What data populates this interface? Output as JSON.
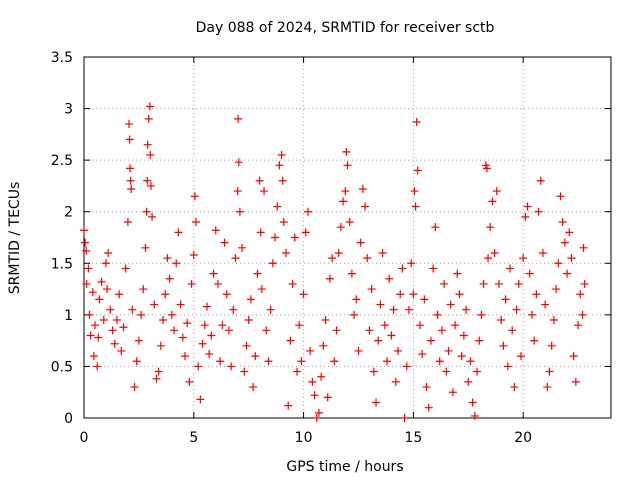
{
  "chart_data": {
    "type": "scatter",
    "title": "Day 088 of 2024, SRMTID for receiver sctb",
    "xlabel": "GPS time / hours",
    "ylabel": "SRMTID / TECUs",
    "xlim": [
      0,
      24
    ],
    "ylim": [
      0,
      3.5
    ],
    "x_ticks": [
      0,
      5,
      10,
      15,
      20
    ],
    "x_tick_labels": [
      "0",
      "5",
      "10",
      "15",
      "20"
    ],
    "y_ticks": [
      0,
      0.5,
      1,
      1.5,
      2,
      2.5,
      3,
      3.5
    ],
    "y_tick_labels": [
      "0",
      "0.5",
      "1",
      "1.5",
      "2",
      "2.5",
      "3",
      "3.5"
    ],
    "grid": true,
    "marker": "+",
    "series": [
      {
        "name": "SRMTID",
        "color": "#ff0000",
        "points": [
          [
            0.0,
            1.82
          ],
          [
            0.05,
            1.7
          ],
          [
            0.1,
            1.62
          ],
          [
            0.12,
            1.3
          ],
          [
            0.2,
            1.45
          ],
          [
            0.25,
            1.0
          ],
          [
            0.3,
            0.8
          ],
          [
            0.4,
            1.22
          ],
          [
            0.45,
            0.6
          ],
          [
            0.5,
            0.9
          ],
          [
            0.6,
            0.5
          ],
          [
            0.65,
            0.78
          ],
          [
            0.7,
            1.15
          ],
          [
            0.8,
            1.32
          ],
          [
            0.9,
            0.95
          ],
          [
            1.0,
            1.5
          ],
          [
            1.05,
            1.25
          ],
          [
            1.1,
            1.6
          ],
          [
            1.2,
            1.05
          ],
          [
            1.3,
            0.85
          ],
          [
            1.4,
            0.72
          ],
          [
            1.5,
            0.95
          ],
          [
            1.6,
            1.2
          ],
          [
            1.7,
            0.65
          ],
          [
            1.8,
            0.88
          ],
          [
            1.9,
            1.45
          ],
          [
            2.0,
            1.9
          ],
          [
            2.05,
            2.85
          ],
          [
            2.08,
            2.7
          ],
          [
            2.1,
            2.42
          ],
          [
            2.12,
            2.3
          ],
          [
            2.15,
            2.22
          ],
          [
            2.2,
            1.05
          ],
          [
            2.3,
            0.3
          ],
          [
            2.4,
            0.55
          ],
          [
            2.5,
            0.75
          ],
          [
            2.6,
            1.0
          ],
          [
            2.7,
            1.25
          ],
          [
            2.8,
            1.65
          ],
          [
            2.85,
            2.0
          ],
          [
            2.88,
            2.3
          ],
          [
            2.9,
            2.65
          ],
          [
            2.95,
            2.9
          ],
          [
            3.0,
            3.02
          ],
          [
            3.02,
            2.55
          ],
          [
            3.05,
            2.25
          ],
          [
            3.1,
            1.95
          ],
          [
            3.2,
            1.1
          ],
          [
            3.3,
            0.38
          ],
          [
            3.4,
            0.45
          ],
          [
            3.5,
            0.7
          ],
          [
            3.6,
            0.95
          ],
          [
            3.7,
            1.2
          ],
          [
            3.8,
            1.55
          ],
          [
            3.9,
            1.35
          ],
          [
            4.0,
            1.0
          ],
          [
            4.1,
            0.85
          ],
          [
            4.2,
            1.5
          ],
          [
            4.3,
            1.8
          ],
          [
            4.4,
            1.1
          ],
          [
            4.5,
            0.78
          ],
          [
            4.6,
            0.6
          ],
          [
            4.7,
            0.92
          ],
          [
            4.8,
            0.35
          ],
          [
            4.9,
            1.3
          ],
          [
            5.0,
            1.58
          ],
          [
            5.05,
            2.15
          ],
          [
            5.1,
            1.9
          ],
          [
            5.2,
            0.5
          ],
          [
            5.3,
            0.18
          ],
          [
            5.4,
            0.72
          ],
          [
            5.5,
            0.9
          ],
          [
            5.6,
            1.08
          ],
          [
            5.7,
            0.62
          ],
          [
            5.8,
            0.8
          ],
          [
            5.9,
            1.4
          ],
          [
            6.0,
            1.82
          ],
          [
            6.1,
            1.3
          ],
          [
            6.2,
            0.55
          ],
          [
            6.3,
            0.9
          ],
          [
            6.4,
            1.7
          ],
          [
            6.5,
            1.2
          ],
          [
            6.6,
            0.85
          ],
          [
            6.7,
            0.5
          ],
          [
            6.8,
            1.05
          ],
          [
            6.9,
            1.55
          ],
          [
            7.0,
            2.2
          ],
          [
            7.02,
            2.9
          ],
          [
            7.05,
            2.48
          ],
          [
            7.1,
            2.0
          ],
          [
            7.2,
            1.65
          ],
          [
            7.3,
            0.45
          ],
          [
            7.4,
            0.7
          ],
          [
            7.5,
            0.95
          ],
          [
            7.6,
            1.15
          ],
          [
            7.7,
            0.3
          ],
          [
            7.8,
            0.6
          ],
          [
            7.9,
            1.4
          ],
          [
            8.0,
            2.3
          ],
          [
            8.05,
            1.8
          ],
          [
            8.1,
            1.25
          ],
          [
            8.2,
            2.2
          ],
          [
            8.3,
            0.85
          ],
          [
            8.4,
            0.55
          ],
          [
            8.5,
            1.05
          ],
          [
            8.6,
            1.5
          ],
          [
            8.7,
            1.75
          ],
          [
            8.8,
            2.05
          ],
          [
            8.9,
            2.45
          ],
          [
            9.0,
            2.55
          ],
          [
            9.05,
            2.3
          ],
          [
            9.1,
            1.9
          ],
          [
            9.2,
            1.6
          ],
          [
            9.3,
            0.12
          ],
          [
            9.4,
            0.75
          ],
          [
            9.5,
            1.3
          ],
          [
            9.6,
            1.75
          ],
          [
            9.7,
            0.45
          ],
          [
            9.8,
            0.9
          ],
          [
            9.9,
            0.55
          ],
          [
            10.0,
            1.2
          ],
          [
            10.1,
            1.8
          ],
          [
            10.2,
            2.0
          ],
          [
            10.3,
            0.65
          ],
          [
            10.4,
            0.35
          ],
          [
            10.5,
            0.22
          ],
          [
            10.6,
            0.0
          ],
          [
            10.7,
            0.05
          ],
          [
            10.8,
            0.4
          ],
          [
            10.9,
            0.7
          ],
          [
            11.0,
            0.95
          ],
          [
            11.1,
            0.2
          ],
          [
            11.2,
            1.35
          ],
          [
            11.3,
            1.55
          ],
          [
            11.4,
            0.55
          ],
          [
            11.5,
            0.85
          ],
          [
            11.6,
            1.6
          ],
          [
            11.7,
            1.85
          ],
          [
            11.8,
            2.1
          ],
          [
            11.9,
            2.2
          ],
          [
            11.95,
            2.58
          ],
          [
            12.0,
            2.45
          ],
          [
            12.1,
            1.9
          ],
          [
            12.2,
            1.4
          ],
          [
            12.3,
            1.0
          ],
          [
            12.4,
            1.15
          ],
          [
            12.5,
            0.65
          ],
          [
            12.6,
            1.7
          ],
          [
            12.7,
            2.22
          ],
          [
            12.8,
            2.05
          ],
          [
            12.9,
            1.55
          ],
          [
            13.0,
            0.85
          ],
          [
            13.1,
            1.25
          ],
          [
            13.2,
            0.45
          ],
          [
            13.3,
            0.15
          ],
          [
            13.4,
            0.75
          ],
          [
            13.5,
            1.1
          ],
          [
            13.6,
            1.6
          ],
          [
            13.7,
            0.9
          ],
          [
            13.8,
            0.55
          ],
          [
            13.9,
            1.35
          ],
          [
            14.0,
            0.8
          ],
          [
            14.1,
            1.05
          ],
          [
            14.2,
            0.35
          ],
          [
            14.3,
            0.65
          ],
          [
            14.4,
            1.2
          ],
          [
            14.5,
            1.45
          ],
          [
            14.6,
            0.0
          ],
          [
            14.7,
            0.5
          ],
          [
            14.8,
            1.05
          ],
          [
            14.9,
            1.5
          ],
          [
            15.0,
            1.2
          ],
          [
            15.05,
            2.2
          ],
          [
            15.1,
            2.05
          ],
          [
            15.15,
            2.87
          ],
          [
            15.2,
            2.4
          ],
          [
            15.3,
            0.9
          ],
          [
            15.4,
            0.62
          ],
          [
            15.5,
            1.15
          ],
          [
            15.6,
            0.3
          ],
          [
            15.7,
            0.1
          ],
          [
            15.8,
            0.75
          ],
          [
            15.9,
            1.45
          ],
          [
            16.0,
            1.85
          ],
          [
            16.1,
            1.0
          ],
          [
            16.2,
            0.55
          ],
          [
            16.3,
            0.85
          ],
          [
            16.4,
            1.3
          ],
          [
            16.5,
            0.45
          ],
          [
            16.6,
            0.65
          ],
          [
            16.7,
            1.1
          ],
          [
            16.8,
            0.25
          ],
          [
            16.9,
            0.9
          ],
          [
            17.0,
            1.4
          ],
          [
            17.1,
            1.2
          ],
          [
            17.2,
            0.6
          ],
          [
            17.3,
            0.8
          ],
          [
            17.4,
            1.05
          ],
          [
            17.5,
            0.35
          ],
          [
            17.6,
            0.55
          ],
          [
            17.7,
            0.15
          ],
          [
            17.8,
            0.02
          ],
          [
            17.9,
            0.45
          ],
          [
            18.0,
            0.75
          ],
          [
            18.1,
            1.0
          ],
          [
            18.2,
            1.3
          ],
          [
            18.3,
            2.45
          ],
          [
            18.35,
            2.42
          ],
          [
            18.4,
            1.55
          ],
          [
            18.5,
            1.85
          ],
          [
            18.6,
            2.1
          ],
          [
            18.7,
            1.6
          ],
          [
            18.8,
            2.2
          ],
          [
            18.9,
            1.3
          ],
          [
            19.0,
            0.95
          ],
          [
            19.1,
            0.7
          ],
          [
            19.2,
            1.15
          ],
          [
            19.3,
            0.5
          ],
          [
            19.4,
            1.45
          ],
          [
            19.5,
            0.85
          ],
          [
            19.6,
            0.3
          ],
          [
            19.7,
            1.05
          ],
          [
            19.8,
            1.3
          ],
          [
            19.9,
            0.6
          ],
          [
            20.0,
            1.55
          ],
          [
            20.1,
            1.95
          ],
          [
            20.2,
            2.05
          ],
          [
            20.3,
            1.4
          ],
          [
            20.4,
            1.0
          ],
          [
            20.5,
            0.75
          ],
          [
            20.6,
            1.2
          ],
          [
            20.7,
            2.0
          ],
          [
            20.8,
            2.3
          ],
          [
            20.9,
            1.6
          ],
          [
            21.0,
            1.1
          ],
          [
            21.1,
            0.3
          ],
          [
            21.2,
            0.45
          ],
          [
            21.3,
            0.7
          ],
          [
            21.4,
            0.95
          ],
          [
            21.5,
            1.25
          ],
          [
            21.6,
            1.5
          ],
          [
            21.7,
            2.15
          ],
          [
            21.8,
            1.9
          ],
          [
            21.9,
            1.7
          ],
          [
            22.0,
            1.4
          ],
          [
            22.1,
            1.8
          ],
          [
            22.2,
            1.55
          ],
          [
            22.3,
            0.6
          ],
          [
            22.4,
            0.35
          ],
          [
            22.5,
            0.9
          ],
          [
            22.6,
            1.2
          ],
          [
            22.7,
            1.0
          ],
          [
            22.75,
            1.65
          ],
          [
            22.8,
            1.3
          ]
        ]
      }
    ]
  }
}
